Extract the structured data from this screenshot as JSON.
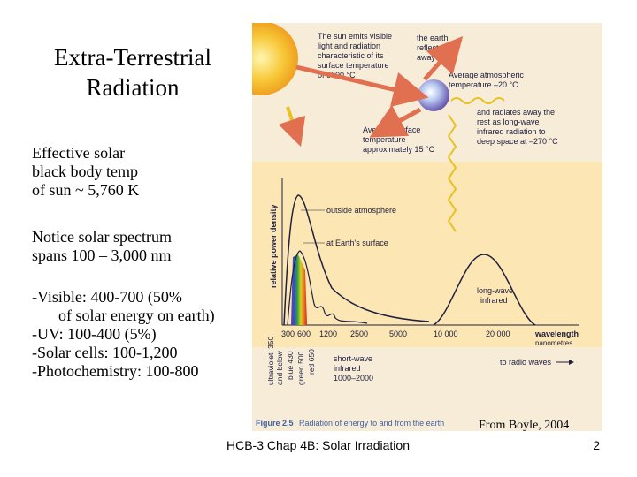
{
  "slide": {
    "title_line1": "Extra-Terrestrial",
    "title_line2": "Radiation",
    "para1": [
      "Effective solar",
      "black body temp",
      "of sun ~ 5,760 K"
    ],
    "para2": [
      "Notice solar spectrum",
      "spans 100 – 3,000 nm"
    ],
    "para3": {
      "l1": "-Visible: 400-700 (50%",
      "l2": "of solar energy on earth)",
      "l3": "-UV: 100-400 (5%)",
      "l4": "-Solar cells: 100-1,200",
      "l5": "-Photochemistry: 100-800"
    },
    "credit": "From Boyle, 2004",
    "footer": "HCB-3 Chap 4B: Solar Irradiation",
    "page_number": "2"
  },
  "figure": {
    "sun_text": [
      "The sun emits visible",
      "light and radiation",
      "characteristic of its",
      "surface temperature",
      "of 6000 °C"
    ],
    "reflect_text": [
      "the earth",
      "reflects",
      "away 30%"
    ],
    "atmos_text": [
      "Average atmospheric",
      "temperature –20 °C"
    ],
    "radiate_text": [
      "and radiates away the",
      "rest as long-wave",
      "infrared radiation to",
      "deep space at –270 °C"
    ],
    "surface_text": [
      "Average surface",
      "temperature",
      "approximately 15 °C"
    ],
    "ylabel": "relative power density",
    "outside_label": "outside atmosphere",
    "surface_label": "at Earth's surface",
    "longwave_label": [
      "long-wave",
      "infrared"
    ],
    "ticks": [
      "300",
      "600",
      "1200",
      "2500",
      "5000",
      "10 000",
      "20 000"
    ],
    "wavelength_label": "wavelength",
    "nanometres_label": "nanometres",
    "vertical_labels": [
      "ultraviolet: 350",
      "and below",
      "blue 430",
      "green 500",
      "red 650"
    ],
    "shortwave_label": [
      "short-wave",
      "infrared",
      "1000–2000"
    ],
    "radio_label": "to radio waves",
    "caption_bold": "Figure 2.5",
    "caption_text": "Radiation of energy to and from the earth",
    "colors": {
      "background": "#f7ecd8",
      "chart_band": "#fbe6b4",
      "arrow": "#e07050",
      "sun": "#f5c030",
      "ray": "#e8c020"
    }
  }
}
